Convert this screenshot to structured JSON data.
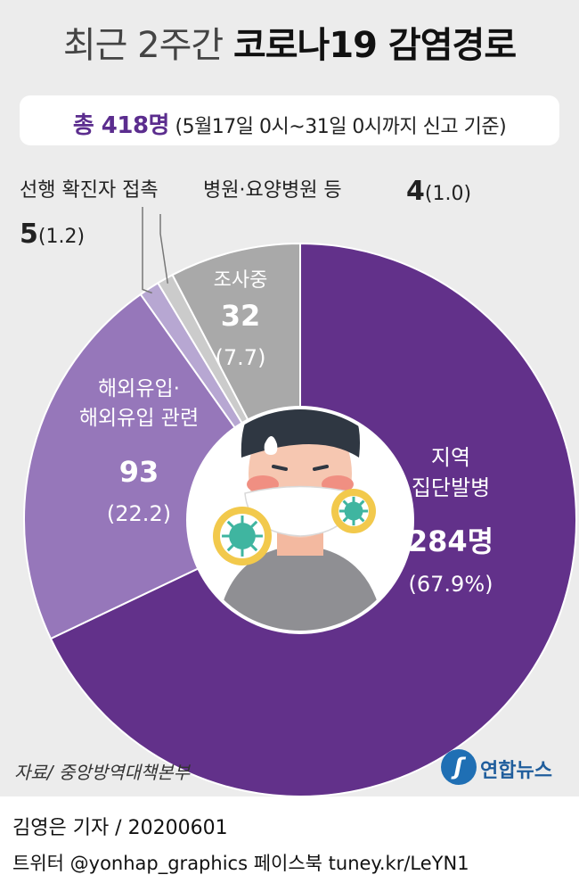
{
  "header": {
    "title_part1": "최근 2주간",
    "title_part2": "코로나19 감염경로",
    "total_label": "총 418명",
    "total_note": "(5월17일 0시~31일 0시까지 신고 기준)"
  },
  "colors": {
    "local": "#62318a",
    "overseas": "#9677ba",
    "contact": "#b7a7d2",
    "hospital": "#cbcbcb",
    "investigating": "#a9a9a9",
    "panel": "#ececec"
  },
  "chart_data": {
    "type": "pie",
    "style": "donut",
    "total": 418,
    "segments": [
      {
        "key": "local",
        "label_lines": [
          "지역",
          "집단발병"
        ],
        "value": 284,
        "value_text": "284명",
        "percent": 67.9,
        "percent_text": "(67.9%)"
      },
      {
        "key": "overseas",
        "label_lines": [
          "해외유입·",
          "해외유입 관련"
        ],
        "value": 93,
        "value_text": "93",
        "percent": 22.2,
        "percent_text": "(22.2)"
      },
      {
        "key": "contact",
        "label_lines": [
          "선행 확진자 접촉"
        ],
        "value": 5,
        "value_text": "5",
        "percent": 1.2,
        "percent_text": "(1.2)"
      },
      {
        "key": "hospital",
        "label_lines": [
          "병원·요양병원 등"
        ],
        "value": 4,
        "value_text": "4",
        "percent": 1.0,
        "percent_text": "(1.0)"
      },
      {
        "key": "investigating",
        "label_lines": [
          "조사중"
        ],
        "value": 32,
        "value_text": "32",
        "percent": 7.7,
        "percent_text": "(7.7)"
      }
    ]
  },
  "footer": {
    "source": "자료/ 중앙방역대책본부",
    "logo_text": "연합뉴스",
    "credit": "김영은 기자 / 20200601",
    "social": "트위터 @yonhap_graphics  페이스북 tuney.kr/LeYN1"
  }
}
